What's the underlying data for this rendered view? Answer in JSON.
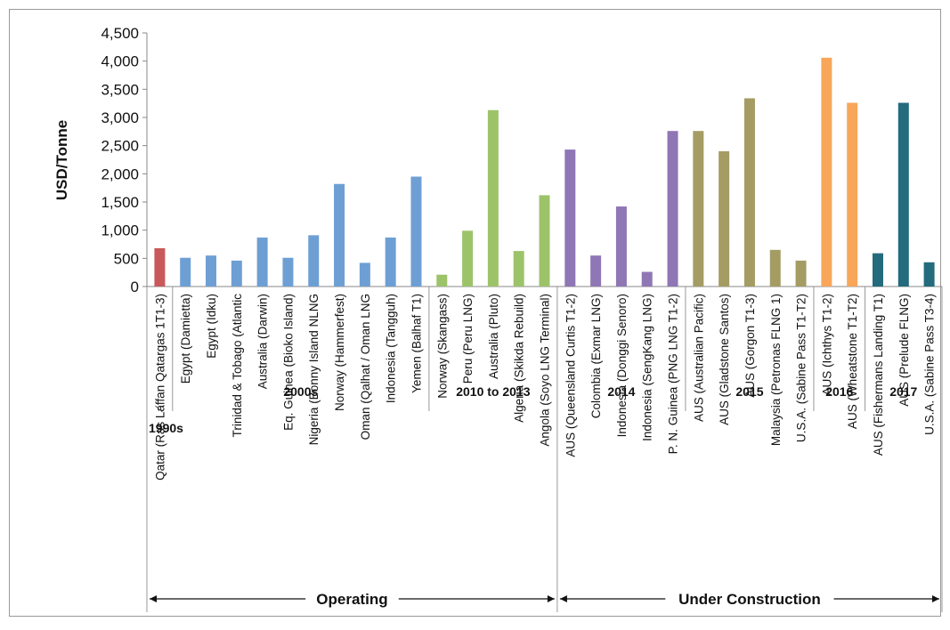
{
  "chart_data": {
    "type": "bar",
    "ylabel": "USD/Tonne",
    "ylim": [
      0,
      4500
    ],
    "yticks": [
      "0",
      "500",
      "1,000",
      "1,500",
      "2,000",
      "2,500",
      "3,000",
      "3,500",
      "4,000",
      "4,500"
    ],
    "grid": false,
    "categories": [
      "Qatar (Ras Laffan Qatargas 1T1-3)",
      "Egypt (Damietta)",
      "Egypt (Idku)",
      "Trinidad & Tobago (Atlantic",
      "Australia (Darwin)",
      "Eq. Guinea (Bioko Island)",
      "Nigeria (Bonny Island NLNG",
      "Norway (Hammerfest)",
      "Oman (Qalhat / Oman LNG",
      "Indonesia (Tangguh)",
      "Yemen (Balhaf T1)",
      "Norway (Skangass)",
      "Peru (Peru LNG)",
      "Australia (Pluto)",
      "Algeria (Skikda Rebuild)",
      "Angola (Soyo LNG Terminal)",
      "AUS (Queensland Curtis T1-2)",
      "Colombia (Exmar LNG)",
      "Indonesia (Donggi Senoro)",
      "Indonesia (SengKang LNG)",
      "P. N. Guinea (PNG LNG T1-2)",
      "AUS (Australian Pacific)",
      "AUS (Gladstone Santos)",
      "AUS (Gorgon T1-3)",
      "Malaysia (Petronas FLNG 1)",
      "U.S.A. (Sabine Pass T1-T2)",
      "AUS (Ichthys T1-2)",
      "AUS (Wheatstone T1-T2)",
      "AUS (Fishermans Landing T1)",
      "AUS (Prelude FLNG)",
      "U.S.A. (Sabine Pass T3-4)"
    ],
    "values": [
      680,
      510,
      550,
      460,
      870,
      510,
      910,
      1820,
      420,
      870,
      1950,
      210,
      990,
      3130,
      630,
      1620,
      2430,
      550,
      1420,
      260,
      2760,
      2760,
      2400,
      3340,
      650,
      460,
      4060,
      3260,
      590,
      3260,
      430
    ],
    "groups": [
      {
        "label": "1990s",
        "start": 0,
        "end": 0,
        "color": "#C9585A"
      },
      {
        "label": "2000s",
        "start": 1,
        "end": 10,
        "color": "#6E9FD4"
      },
      {
        "label": "2010 to 2013",
        "start": 11,
        "end": 15,
        "color": "#9DC36A"
      },
      {
        "label": "2014",
        "start": 16,
        "end": 20,
        "color": "#8F76B5"
      },
      {
        "label": "2015",
        "start": 21,
        "end": 25,
        "color": "#A49C63"
      },
      {
        "label": "2016",
        "start": 26,
        "end": 27,
        "color": "#F8A65A"
      },
      {
        "label": "2017",
        "start": 28,
        "end": 30,
        "color": "#236B7D"
      }
    ],
    "stages": [
      {
        "label": "Operating",
        "start": 0,
        "end": 15
      },
      {
        "label": "Under Construction",
        "start": 16,
        "end": 30
      }
    ]
  }
}
